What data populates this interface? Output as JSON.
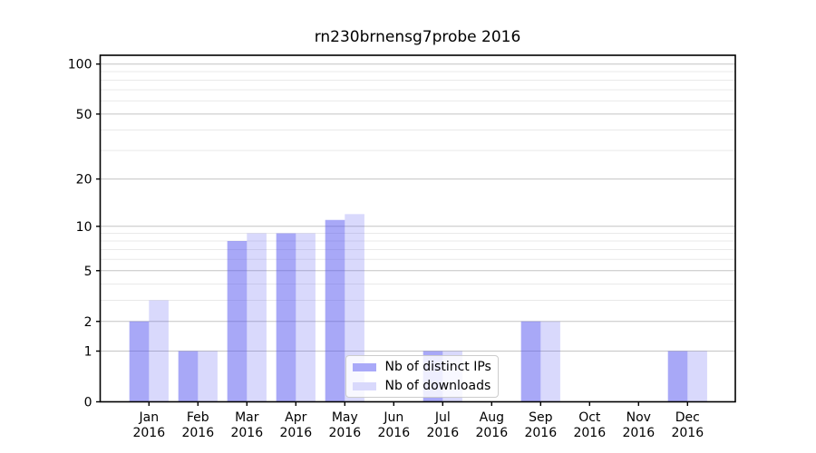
{
  "chart_data": {
    "type": "bar",
    "title": "rn230brnensg7probe 2016",
    "categories": [
      "Jan",
      "Feb",
      "Mar",
      "Apr",
      "May",
      "Jun",
      "Jul",
      "Aug",
      "Sep",
      "Oct",
      "Nov",
      "Dec"
    ],
    "year": "2016",
    "series": [
      {
        "name": "Nb of distinct IPs",
        "color": "#5252f0",
        "alpha": 0.5,
        "values": [
          2,
          1,
          8,
          9,
          11,
          0,
          1,
          0,
          2,
          0,
          0,
          1
        ]
      },
      {
        "name": "Nb of downloads",
        "color": "#5252f0",
        "alpha": 0.22,
        "values": [
          3,
          1,
          9,
          9,
          12,
          0,
          1,
          0,
          2,
          0,
          0,
          1
        ]
      }
    ],
    "yscale": "log1p",
    "ylim": [
      0,
      113
    ],
    "y_major_ticks": [
      0,
      1,
      2,
      5,
      10,
      20,
      50,
      100
    ],
    "y_minor_ticks": [
      3,
      4,
      6,
      7,
      8,
      9,
      30,
      40,
      60,
      70,
      80,
      90
    ],
    "grid": "horizontal",
    "legend_position": "lower-center-inside",
    "colors": {
      "spine": "#000000",
      "major_grid": "#c4c4c4",
      "minor_grid": "#e9e9e9",
      "legend_border": "#cccccc"
    }
  }
}
